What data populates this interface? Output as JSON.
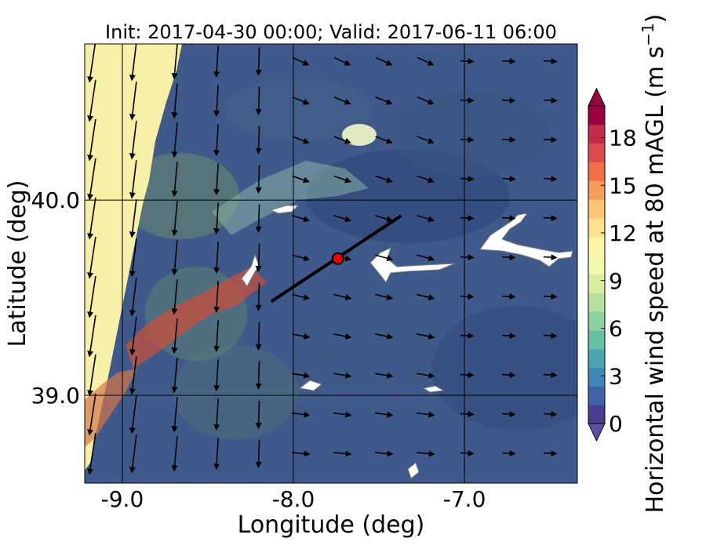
{
  "title": "Init: 2017-04-30 00:00; Valid: 2017-06-11 06:00",
  "xlabel": "Longitude (deg)",
  "ylabel": "Latitude (deg)",
  "colorbar": {
    "label": "Horizontal wind speed at 80 mAGL (m s",
    "label_sup": "−1",
    "label_tail": ")",
    "ticks": [
      "0",
      "3",
      "6",
      "9",
      "12",
      "15",
      "18"
    ],
    "extend": "both",
    "colors": [
      "#4a3c8f",
      "#3f62a8",
      "#3f86b9",
      "#4aa6b5",
      "#67bfa4",
      "#8fd0a2",
      "#b6e0a0",
      "#d8ee9d",
      "#f0f8aa",
      "#fdf3a6",
      "#fee08b",
      "#fdc471",
      "#f99c59",
      "#f26f45",
      "#dc4d4a",
      "#c22b4a",
      "#9e0142"
    ],
    "extend_low": "#5e4fa2",
    "extend_high": "#9e0142"
  },
  "map": {
    "lon_ticks": [
      "-9.0",
      "-8.0",
      "-7.0"
    ],
    "lat_ticks": [
      "39.0",
      "40.0"
    ],
    "marker": {
      "name": "site",
      "lon": -7.74,
      "lat": 39.7,
      "color": "#e8000b"
    },
    "transect": {
      "lon_start": -8.13,
      "lat_start": 39.48,
      "lon_end": -7.37,
      "lat_end": 39.92
    }
  },
  "chart_data": {
    "type": "map",
    "title": "Init: 2017-04-30 00:00; Valid: 2017-06-11 06:00",
    "xlabel": "Longitude (deg)",
    "ylabel": "Latitude (deg)",
    "xlim": [
      -9.22,
      -6.34
    ],
    "ylim": [
      38.55,
      40.8
    ],
    "colorbar_range": [
      0,
      20
    ],
    "colorbar_ticks": [
      0,
      3,
      6,
      9,
      12,
      15,
      18
    ]
  }
}
